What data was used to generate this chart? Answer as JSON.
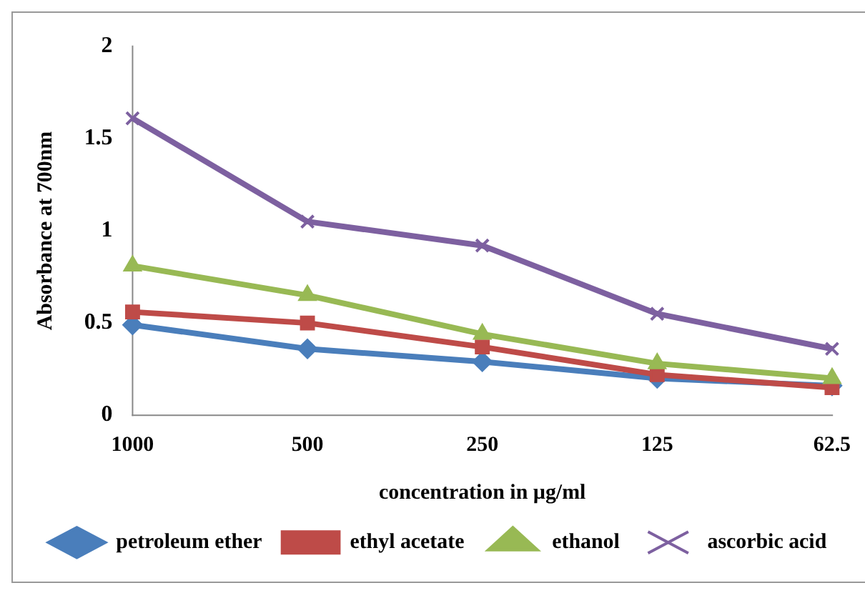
{
  "chart_data": {
    "type": "line",
    "xlabel": "concentration in µg/ml",
    "ylabel": "Absorbance at 700nm",
    "categories": [
      "1000",
      "500",
      "250",
      "125",
      "62.5"
    ],
    "ylim": [
      0,
      2
    ],
    "yticks": [
      0,
      0.5,
      1,
      1.5,
      2
    ],
    "grid": false,
    "legend": "bottom",
    "line_style": "solid",
    "series": [
      {
        "name": "petroleum ether",
        "color": "#4a7ebb",
        "marker": "diamond",
        "values": [
          0.49,
          0.36,
          0.29,
          0.2,
          0.16
        ]
      },
      {
        "name": "ethyl acetate",
        "color": "#be4b48",
        "marker": "square",
        "values": [
          0.56,
          0.5,
          0.37,
          0.22,
          0.15
        ]
      },
      {
        "name": "ethanol",
        "color": "#98b954",
        "marker": "triangle",
        "values": [
          0.81,
          0.65,
          0.44,
          0.28,
          0.2
        ]
      },
      {
        "name": "ascorbic acid",
        "color": "#7d60a0",
        "marker": "cross",
        "values": [
          1.61,
          1.05,
          0.92,
          0.55,
          0.36
        ]
      }
    ]
  }
}
